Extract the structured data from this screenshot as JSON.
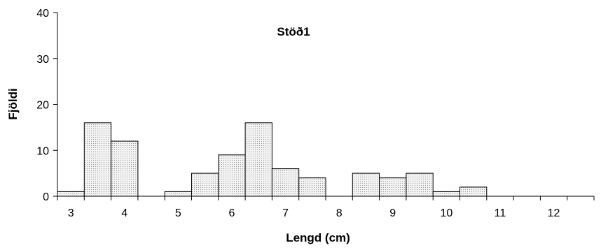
{
  "chart_data": {
    "type": "bar",
    "title": "Stöð1",
    "xlabel": "Lengd (cm)",
    "ylabel": "Fjöldi",
    "ylim": [
      0,
      40
    ],
    "yticks": [
      "0",
      "10",
      "20",
      "30",
      "40"
    ],
    "xticks": [
      "3",
      "4",
      "5",
      "6",
      "7",
      "8",
      "9",
      "10",
      "11",
      "12"
    ],
    "xlim": [
      2.75,
      12.75
    ],
    "bin_width": 0.5,
    "bins": [
      {
        "x": 3.0,
        "value": 1
      },
      {
        "x": 3.5,
        "value": 16
      },
      {
        "x": 4.0,
        "value": 12
      },
      {
        "x": 4.5,
        "value": 0
      },
      {
        "x": 5.0,
        "value": 1
      },
      {
        "x": 5.5,
        "value": 5
      },
      {
        "x": 6.0,
        "value": 9
      },
      {
        "x": 6.5,
        "value": 16
      },
      {
        "x": 7.0,
        "value": 6
      },
      {
        "x": 7.5,
        "value": 4
      },
      {
        "x": 8.0,
        "value": 0
      },
      {
        "x": 8.5,
        "value": 5
      },
      {
        "x": 9.0,
        "value": 4
      },
      {
        "x": 9.5,
        "value": 5
      },
      {
        "x": 10.0,
        "value": 1
      },
      {
        "x": 10.5,
        "value": 2
      }
    ],
    "bar_fill": "#e4e4e4",
    "bar_stroke": "#000000",
    "grid": false
  }
}
